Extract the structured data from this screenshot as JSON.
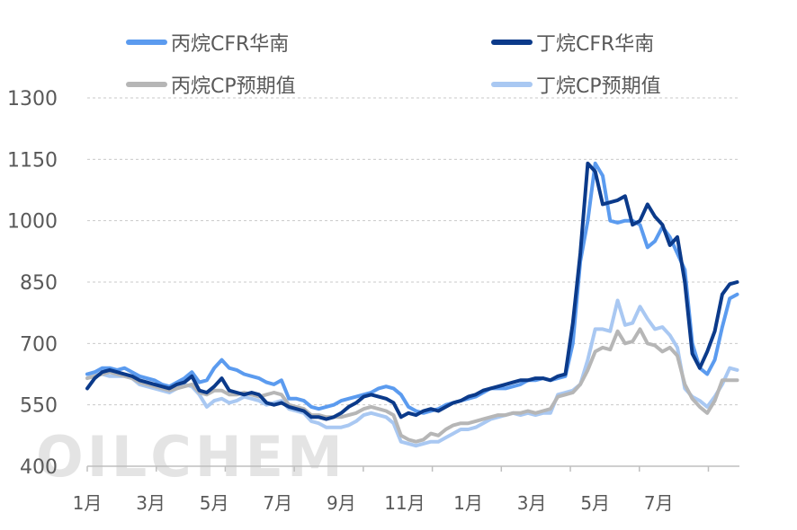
{
  "watermark": "OILCHEM",
  "chart_data": {
    "type": "line",
    "title": "",
    "xlabel": "",
    "ylabel": "",
    "ylim": [
      400,
      1300
    ],
    "yticks": [
      400,
      550,
      700,
      850,
      1000,
      1150,
      1300
    ],
    "grid": true,
    "legend_position": "top",
    "x_ticks": [
      {
        "x": 0,
        "label": "1月"
      },
      {
        "x": 8.5,
        "label": "3月"
      },
      {
        "x": 17,
        "label": "5月"
      },
      {
        "x": 25.5,
        "label": "7月"
      },
      {
        "x": 34,
        "label": "9月"
      },
      {
        "x": 42.5,
        "label": "11月"
      },
      {
        "x": 51,
        "label": "1月"
      },
      {
        "x": 59.5,
        "label": "3月"
      },
      {
        "x": 68,
        "label": "5月"
      },
      {
        "x": 76.5,
        "label": "7月"
      }
    ],
    "series": [
      {
        "name": "丙烷CFR华南",
        "color": "#5b9bef",
        "values": [
          625,
          630,
          640,
          640,
          635,
          640,
          630,
          620,
          615,
          610,
          600,
          595,
          605,
          615,
          630,
          605,
          610,
          640,
          660,
          640,
          635,
          625,
          620,
          615,
          605,
          600,
          610,
          565,
          565,
          560,
          545,
          540,
          545,
          550,
          560,
          565,
          570,
          575,
          580,
          590,
          595,
          590,
          575,
          545,
          535,
          530,
          535,
          540,
          550,
          555,
          560,
          565,
          570,
          580,
          590,
          590,
          590,
          595,
          600,
          610,
          610,
          615,
          610,
          615,
          620,
          700,
          900,
          1000,
          1140,
          1110,
          1000,
          995,
          1000,
          1000,
          990,
          935,
          950,
          985,
          960,
          920,
          880,
          700,
          640,
          625,
          660,
          740,
          810,
          820
        ]
      },
      {
        "name": "丁烷CFR华南",
        "color": "#0b3a8a",
        "values": [
          590,
          615,
          630,
          635,
          630,
          625,
          620,
          610,
          605,
          600,
          595,
          590,
          600,
          605,
          620,
          585,
          580,
          595,
          615,
          585,
          580,
          575,
          580,
          575,
          555,
          550,
          555,
          545,
          540,
          535,
          520,
          520,
          515,
          520,
          530,
          545,
          555,
          570,
          575,
          570,
          565,
          555,
          520,
          530,
          525,
          535,
          540,
          535,
          545,
          555,
          560,
          570,
          575,
          585,
          590,
          595,
          600,
          605,
          610,
          610,
          615,
          615,
          610,
          620,
          625,
          750,
          920,
          1140,
          1120,
          1040,
          1045,
          1050,
          1060,
          990,
          1000,
          1040,
          1010,
          990,
          940,
          960,
          850,
          675,
          640,
          680,
          730,
          820,
          845,
          850
        ]
      },
      {
        "name": "丙烷CP预期值",
        "color": "#b6b6b6",
        "values": [
          615,
          620,
          625,
          630,
          625,
          620,
          615,
          605,
          600,
          595,
          590,
          585,
          590,
          595,
          600,
          580,
          575,
          585,
          585,
          575,
          575,
          580,
          575,
          570,
          575,
          580,
          575,
          550,
          545,
          540,
          525,
          525,
          520,
          520,
          520,
          525,
          530,
          540,
          545,
          540,
          535,
          525,
          475,
          465,
          460,
          465,
          480,
          475,
          490,
          500,
          505,
          505,
          510,
          515,
          520,
          525,
          525,
          530,
          530,
          535,
          530,
          535,
          540,
          570,
          575,
          580,
          600,
          635,
          680,
          690,
          685,
          730,
          700,
          705,
          735,
          700,
          695,
          680,
          690,
          670,
          600,
          565,
          545,
          530,
          560,
          610,
          610,
          610
        ]
      },
      {
        "name": "丁烷CP预期值",
        "color": "#a9c8f2",
        "values": [
          625,
          625,
          625,
          620,
          620,
          620,
          615,
          600,
          595,
          590,
          585,
          580,
          590,
          600,
          595,
          575,
          545,
          560,
          565,
          555,
          560,
          570,
          565,
          560,
          550,
          555,
          560,
          540,
          535,
          530,
          510,
          505,
          495,
          495,
          495,
          500,
          510,
          525,
          530,
          525,
          520,
          505,
          460,
          455,
          450,
          455,
          460,
          460,
          470,
          480,
          490,
          490,
          495,
          505,
          515,
          520,
          525,
          530,
          525,
          530,
          525,
          530,
          530,
          575,
          580,
          585,
          600,
          660,
          735,
          735,
          730,
          805,
          745,
          750,
          790,
          760,
          735,
          740,
          720,
          690,
          590,
          570,
          560,
          545,
          570,
          600,
          640,
          635
        ]
      }
    ]
  }
}
